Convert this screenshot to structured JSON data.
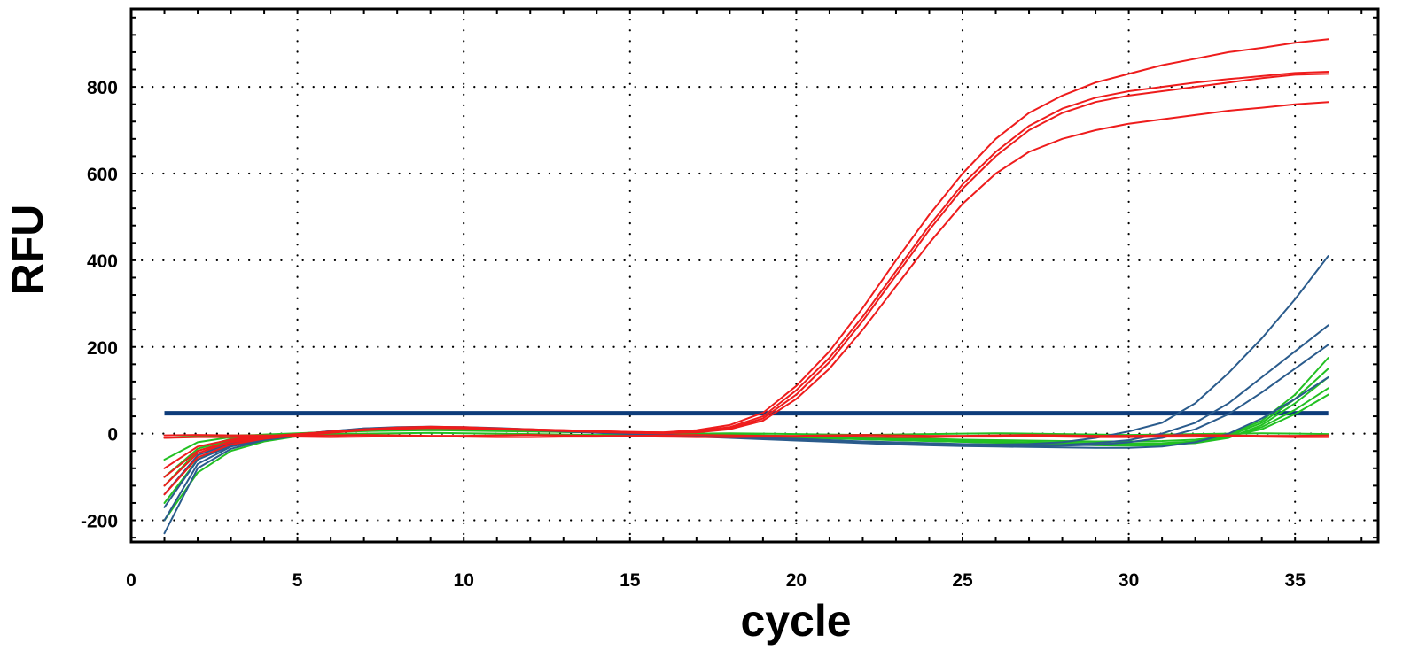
{
  "chart_data": {
    "type": "line",
    "title": "",
    "xlabel": "cycle",
    "ylabel": "RFU",
    "xlim": [
      0,
      37.5
    ],
    "ylim": [
      -250,
      980
    ],
    "xticks": [
      0,
      5,
      10,
      15,
      20,
      25,
      30,
      35
    ],
    "yticks": [
      -200,
      0,
      200,
      400,
      600,
      800
    ],
    "grid": true,
    "legend": "none",
    "colors": {
      "red": "#ee1c1c",
      "blue": "#2a5b8c",
      "green": "#22c022",
      "threshold": "#0d3c7a"
    },
    "threshold": {
      "y": 47,
      "x": [
        1,
        36
      ]
    },
    "cycles": [
      1,
      2,
      3,
      4,
      5,
      6,
      7,
      8,
      9,
      10,
      11,
      12,
      13,
      14,
      15,
      16,
      17,
      18,
      19,
      20,
      21,
      22,
      23,
      24,
      25,
      26,
      27,
      28,
      29,
      30,
      31,
      32,
      33,
      34,
      35,
      36
    ],
    "series": [
      {
        "color": "red",
        "values": [
          -100,
          -40,
          -18,
          -8,
          -2,
          4,
          10,
          14,
          16,
          15,
          12,
          10,
          8,
          6,
          4,
          3,
          8,
          20,
          48,
          110,
          190,
          290,
          400,
          505,
          600,
          680,
          740,
          780,
          810,
          830,
          850,
          865,
          880,
          890,
          902,
          910
        ]
      },
      {
        "color": "red",
        "values": [
          -140,
          -55,
          -25,
          -12,
          -4,
          2,
          8,
          12,
          14,
          13,
          11,
          9,
          7,
          5,
          3,
          2,
          6,
          15,
          40,
          100,
          175,
          270,
          375,
          480,
          575,
          650,
          710,
          750,
          775,
          790,
          800,
          810,
          818,
          825,
          832,
          835
        ]
      },
      {
        "color": "red",
        "values": [
          -80,
          -30,
          -14,
          -6,
          -1,
          5,
          10,
          13,
          15,
          14,
          12,
          10,
          8,
          6,
          4,
          3,
          5,
          12,
          35,
          90,
          165,
          260,
          365,
          470,
          565,
          640,
          700,
          740,
          765,
          780,
          790,
          800,
          810,
          820,
          828,
          830
        ]
      },
      {
        "color": "red",
        "values": [
          -120,
          -45,
          -20,
          -10,
          -3,
          3,
          8,
          11,
          13,
          12,
          10,
          8,
          6,
          4,
          2,
          1,
          3,
          10,
          30,
          80,
          150,
          240,
          340,
          440,
          530,
          600,
          650,
          680,
          700,
          715,
          725,
          735,
          745,
          752,
          760,
          765
        ]
      },
      {
        "color": "red",
        "values": [
          -10,
          -8,
          -8,
          -7,
          -7,
          -8,
          -7,
          -6,
          -6,
          -7,
          -8,
          -8,
          -7,
          -7,
          -6,
          -7,
          -8,
          -8,
          -7,
          -7,
          -6,
          -7,
          -8,
          -8,
          -7,
          -7,
          -6,
          -7,
          -8,
          -8,
          -7,
          -7,
          -6,
          -7,
          -8,
          -8
        ]
      },
      {
        "color": "red",
        "values": [
          -4,
          -3,
          -4,
          -4,
          -5,
          -4,
          -3,
          -4,
          -5,
          -5,
          -4,
          -3,
          -4,
          -5,
          -5,
          -4,
          -3,
          -4,
          -5,
          -5,
          -4,
          -3,
          -4,
          -5,
          -5,
          -4,
          -3,
          -4,
          -5,
          -5,
          -4,
          -3,
          -4,
          -5,
          -5,
          -4
        ]
      },
      {
        "color": "blue",
        "values": [
          -230,
          -80,
          -35,
          -15,
          -5,
          5,
          12,
          15,
          16,
          15,
          13,
          10,
          7,
          4,
          1,
          -2,
          -5,
          -8,
          -10,
          -12,
          -15,
          -18,
          -20,
          -22,
          -24,
          -25,
          -24,
          -20,
          -10,
          5,
          25,
          70,
          140,
          220,
          310,
          410
        ]
      },
      {
        "color": "blue",
        "values": [
          -170,
          -60,
          -28,
          -12,
          -3,
          6,
          12,
          14,
          15,
          14,
          12,
          9,
          6,
          3,
          0,
          -3,
          -6,
          -9,
          -12,
          -15,
          -18,
          -20,
          -22,
          -24,
          -25,
          -26,
          -27,
          -26,
          -22,
          -15,
          0,
          25,
          70,
          130,
          190,
          250
        ]
      },
      {
        "color": "blue",
        "values": [
          -200,
          -70,
          -30,
          -14,
          -4,
          5,
          11,
          14,
          15,
          14,
          12,
          9,
          6,
          3,
          0,
          -3,
          -6,
          -9,
          -12,
          -15,
          -18,
          -21,
          -23,
          -25,
          -27,
          -28,
          -29,
          -28,
          -26,
          -20,
          -10,
          10,
          45,
          95,
          150,
          205
        ]
      },
      {
        "color": "blue",
        "values": [
          -140,
          -50,
          -22,
          -10,
          -2,
          6,
          11,
          13,
          14,
          13,
          11,
          8,
          5,
          2,
          -1,
          -4,
          -7,
          -10,
          -13,
          -16,
          -19,
          -22,
          -25,
          -27,
          -29,
          -30,
          -31,
          -32,
          -33,
          -33,
          -30,
          -20,
          0,
          35,
          80,
          130
        ]
      },
      {
        "color": "green",
        "values": [
          -120,
          -40,
          -15,
          -5,
          0,
          5,
          8,
          10,
          11,
          10,
          9,
          7,
          5,
          3,
          1,
          -1,
          -3,
          -5,
          -7,
          -9,
          -11,
          -13,
          -15,
          -17,
          -19,
          -21,
          -22,
          -23,
          -24,
          -25,
          -25,
          -22,
          -10,
          20,
          70,
          130
        ]
      },
      {
        "color": "green",
        "values": [
          -200,
          -90,
          -40,
          -18,
          -6,
          3,
          9,
          12,
          13,
          12,
          10,
          8,
          6,
          4,
          2,
          0,
          -2,
          -4,
          -6,
          -8,
          -10,
          -12,
          -14,
          -16,
          -18,
          -20,
          -22,
          -24,
          -26,
          -27,
          -25,
          -18,
          -2,
          30,
          90,
          175
        ]
      },
      {
        "color": "green",
        "values": [
          -60,
          -20,
          -8,
          -2,
          1,
          4,
          6,
          7,
          8,
          7,
          6,
          5,
          4,
          3,
          2,
          1,
          0,
          -2,
          -4,
          -6,
          -8,
          -10,
          -12,
          -14,
          -16,
          -18,
          -20,
          -21,
          -22,
          -23,
          -22,
          -18,
          -8,
          15,
          55,
          105
        ]
      },
      {
        "color": "green",
        "values": [
          -160,
          -60,
          -25,
          -10,
          -2,
          4,
          8,
          10,
          11,
          10,
          9,
          7,
          5,
          3,
          1,
          -1,
          -3,
          -5,
          -7,
          -9,
          -11,
          -13,
          -15,
          -17,
          -19,
          -21,
          -23,
          -25,
          -27,
          -28,
          -27,
          -20,
          -5,
          25,
          80,
          150
        ]
      },
      {
        "color": "green",
        "values": [
          -100,
          -35,
          -12,
          -4,
          0,
          3,
          6,
          8,
          9,
          8,
          7,
          6,
          4,
          3,
          1,
          0,
          -2,
          -3,
          -5,
          -6,
          -8,
          -9,
          -11,
          -12,
          -14,
          -15,
          -16,
          -17,
          -18,
          -18,
          -17,
          -14,
          -6,
          10,
          45,
          90
        ]
      },
      {
        "color": "green",
        "values": [
          -10,
          -6,
          -4,
          -3,
          -2,
          -1,
          0,
          1,
          2,
          1,
          0,
          -1,
          -2,
          -3,
          -2,
          -1,
          0,
          1,
          0,
          -1,
          -2,
          -3,
          -2,
          -1,
          0,
          1,
          0,
          -1,
          -2,
          -3,
          -2,
          -1,
          0,
          1,
          0,
          -1
        ]
      }
    ]
  }
}
